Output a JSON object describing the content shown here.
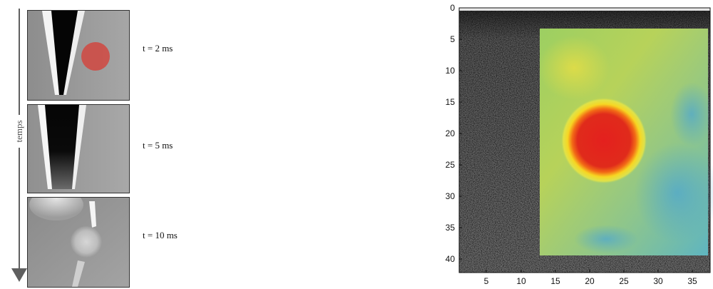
{
  "time_axis": {
    "label": "temps"
  },
  "frames": [
    {
      "caption": "t = 2 ms"
    },
    {
      "caption": "t = 5 ms"
    },
    {
      "caption": "t = 10 ms"
    }
  ],
  "elasto_map": {
    "y_ticks": [
      "0",
      "5",
      "10",
      "15",
      "20",
      "25",
      "30",
      "35",
      "40"
    ],
    "x_ticks": [
      "5",
      "10",
      "15",
      "20",
      "25",
      "30",
      "35"
    ]
  }
}
